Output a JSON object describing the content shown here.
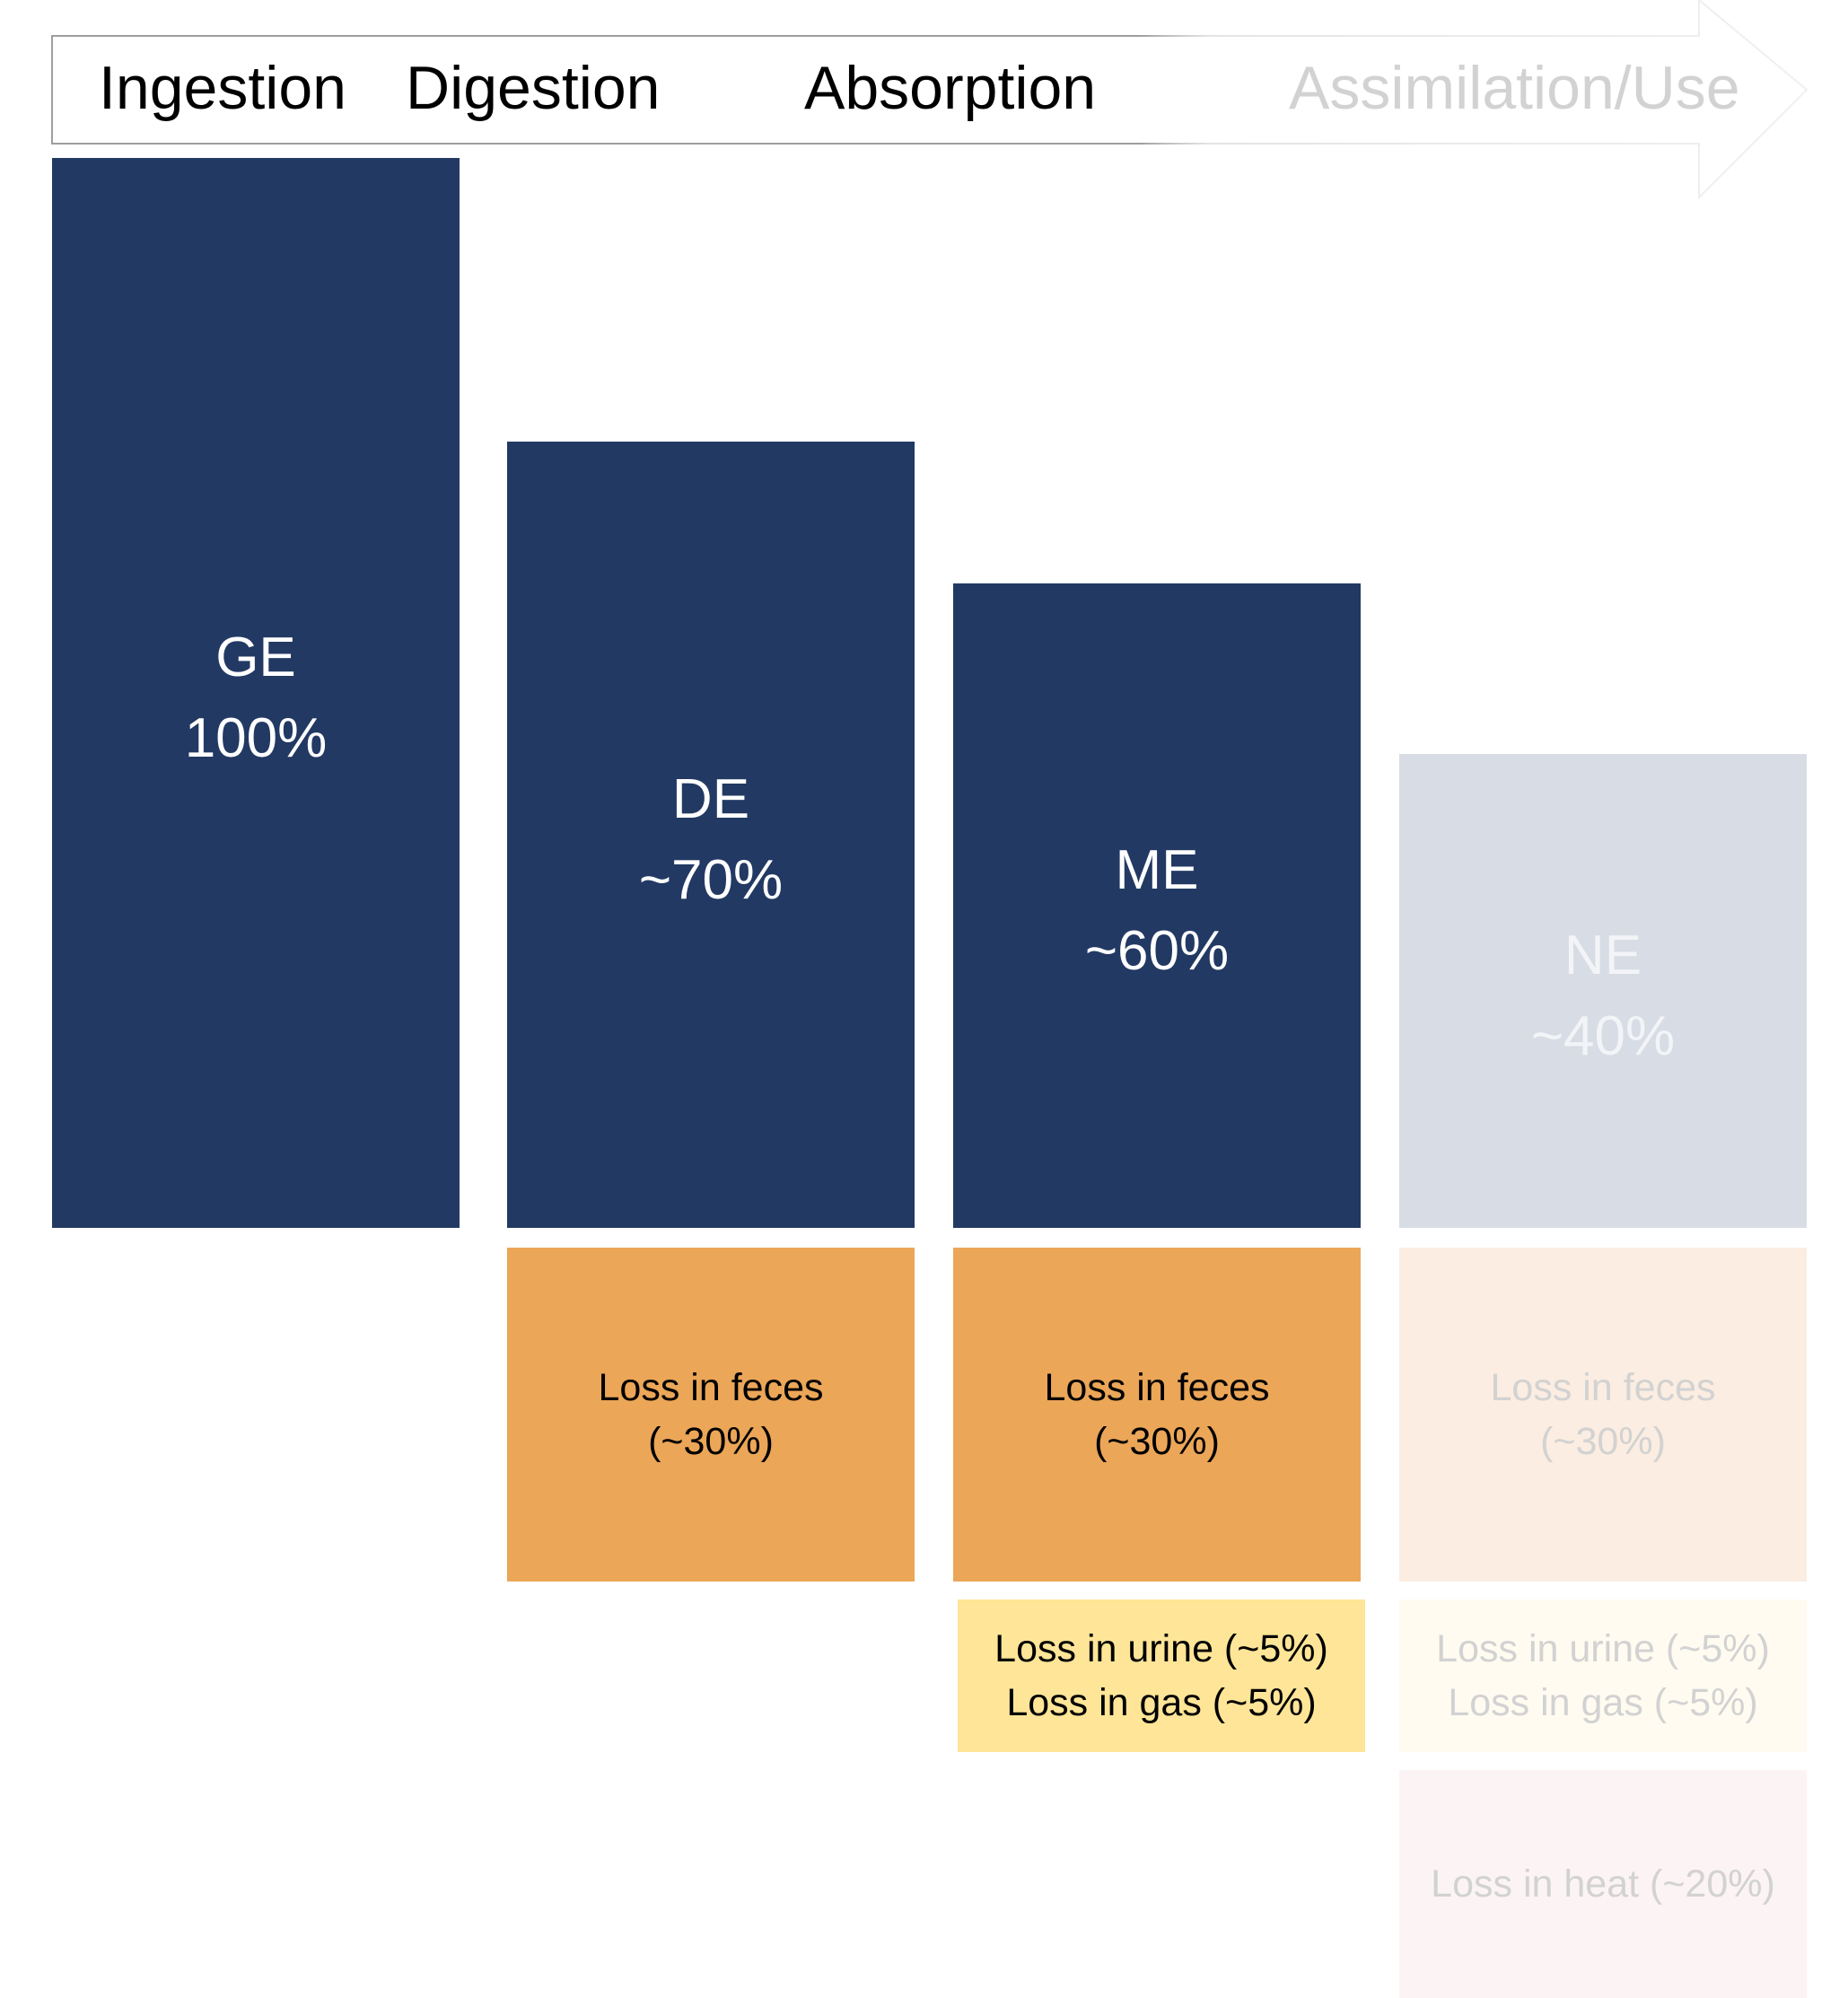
{
  "process_arrow": {
    "stages": [
      "Ingestion",
      "Digestion",
      "Absorption",
      "Assimilation/Use"
    ]
  },
  "energy_blocks": [
    {
      "name": "GE",
      "value": "100%"
    },
    {
      "name": "DE",
      "value": "~70%"
    },
    {
      "name": "ME",
      "value": "~60%"
    },
    {
      "name": "NE",
      "value": "~40%"
    }
  ],
  "loss_blocks": {
    "de_feces": [
      "Loss in feces",
      "(~30%)"
    ],
    "me_feces": [
      "Loss in feces",
      "(~30%)"
    ],
    "ne_feces": [
      "Loss in feces",
      "(~30%)"
    ],
    "me_urine_gas": [
      "Loss in urine (~5%)",
      "Loss in gas (~5%)"
    ],
    "ne_urine_gas": [
      "Loss in urine (~5%)",
      "Loss in gas (~5%)"
    ],
    "ne_heat": [
      "Loss in heat (~20%)"
    ]
  },
  "colors": {
    "energy_dark": "#223963",
    "energy_faded": "#d8dce4",
    "feces_orange": "#eba658",
    "feces_faded": "#fbede1",
    "urine_yellow": "#fee597",
    "urine_faded": "#fffbf0",
    "heat_faded": "#fcf3f4",
    "arrow_outline": "#9e9e9e"
  }
}
